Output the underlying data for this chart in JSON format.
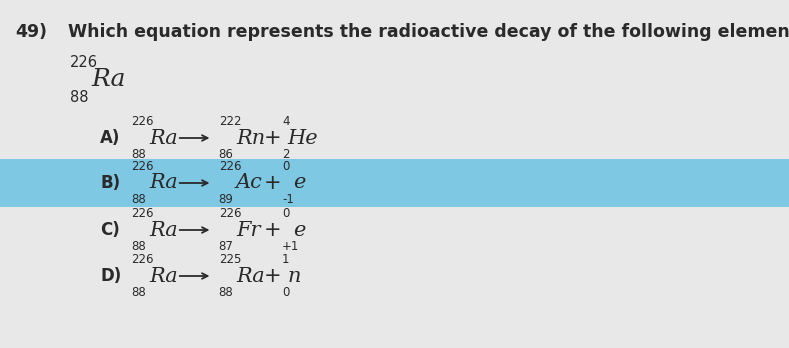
{
  "question_number": "49)",
  "question_text": "Which equation represents the radioactive decay of the following element?",
  "element": {
    "sup": "226",
    "sub": "88",
    "sym": "Ra"
  },
  "options": [
    {
      "label": "A)",
      "highlighted": false,
      "parts": [
        {
          "sup": "226",
          "sub": "88",
          "sym": "Ra"
        },
        {
          "arrow": true
        },
        {
          "sup": "222",
          "sub": "86",
          "sym": "Rn"
        },
        {
          "plus": true
        },
        {
          "sup": "4",
          "sub": "2",
          "sym": "He"
        }
      ]
    },
    {
      "label": "B)",
      "highlighted": true,
      "parts": [
        {
          "sup": "226",
          "sub": "88",
          "sym": "Ra"
        },
        {
          "arrow": true
        },
        {
          "sup": "226",
          "sub": "89",
          "sym": "Ac"
        },
        {
          "plus": true
        },
        {
          "sup": "0",
          "sub": "-1",
          "sym": "e"
        }
      ]
    },
    {
      "label": "C)",
      "highlighted": false,
      "parts": [
        {
          "sup": "226",
          "sub": "88",
          "sym": "Ra"
        },
        {
          "arrow": true
        },
        {
          "sup": "226",
          "sub": "87",
          "sym": "Fr"
        },
        {
          "plus": true
        },
        {
          "sup": "0",
          "sub": "+1",
          "sym": "e"
        }
      ]
    },
    {
      "label": "D)",
      "highlighted": false,
      "parts": [
        {
          "sup": "226",
          "sub": "88",
          "sym": "Ra"
        },
        {
          "arrow": true
        },
        {
          "sup": "225",
          "sub": "88",
          "sym": "Ra"
        },
        {
          "plus": true
        },
        {
          "sup": "1",
          "sub": "0",
          "sym": "n"
        }
      ]
    }
  ],
  "bg_color": "#e8e8e8",
  "highlight_color": "#7ec8e3",
  "text_color": "#2a2a2a",
  "font_size_question": 12.5,
  "font_size_label": 12,
  "font_size_sym": 15,
  "font_size_script": 8.5,
  "fig_width": 7.89,
  "fig_height": 3.48,
  "dpi": 100
}
